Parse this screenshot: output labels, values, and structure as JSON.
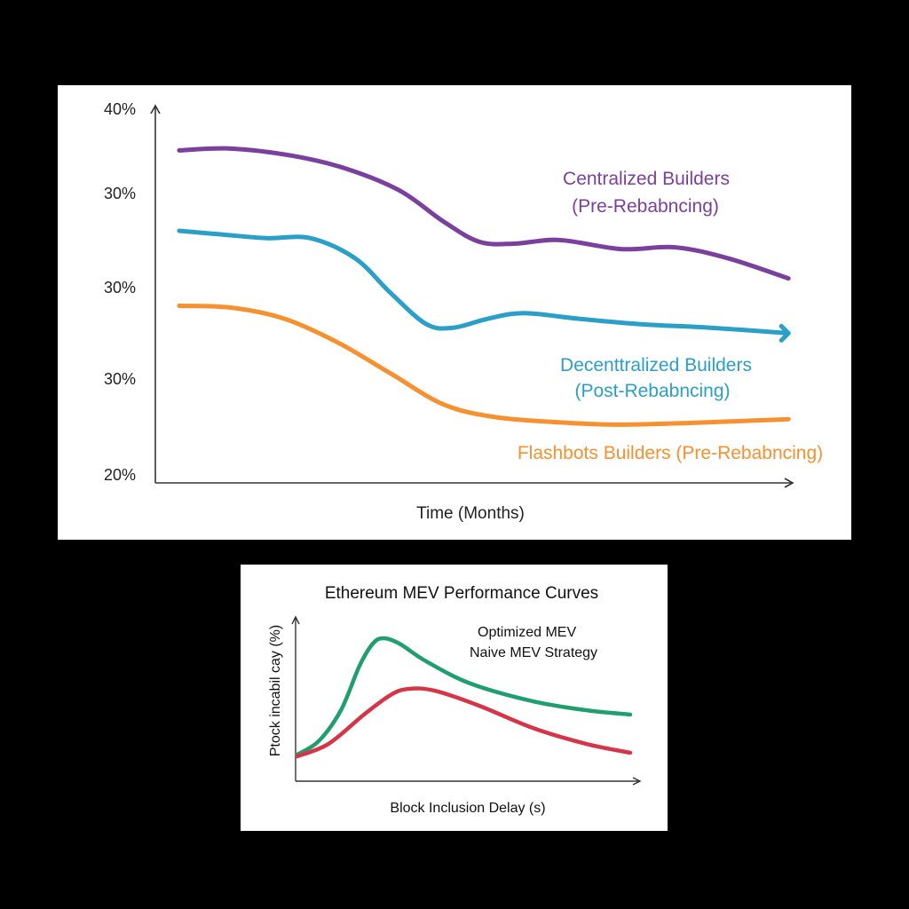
{
  "chart_data": [
    {
      "type": "line",
      "title": "",
      "xlabel": "Time (Months)",
      "ylabel": "",
      "y_tick_labels": [
        "40%",
        "30%",
        "30%",
        "30%",
        "20%"
      ],
      "ylim": [
        20,
        40
      ],
      "xlim": [
        0,
        12
      ],
      "grid": false,
      "legend": "inline labels at right",
      "series": [
        {
          "name": "Centralized Builders",
          "name_line2": "(Pre-Rebabncing)",
          "color": "#7b3f9e",
          "x": [
            0.45,
            1.42,
            2.59,
            3.59,
            4.6,
            5.43,
            6.1,
            6.77,
            7.6,
            8.77,
            9.78,
            10.78,
            11.92
          ],
          "y": [
            37.7,
            37.8,
            37.4,
            36.7,
            35.5,
            33.8,
            32.7,
            32.6,
            32.8,
            32.3,
            32.4,
            31.8,
            30.7
          ]
        },
        {
          "name": "Decenttralized Builders",
          "name_line2": "(Post-Rebabncing)",
          "color": "#2aa0c8",
          "end_arrow": true,
          "x": [
            0.45,
            1.25,
            2.09,
            2.92,
            3.76,
            4.43,
            5.1,
            5.6,
            6.27,
            6.94,
            7.94,
            9.11,
            10.45,
            11.92
          ],
          "y": [
            33.3,
            33.1,
            32.9,
            32.9,
            31.8,
            29.9,
            28.2,
            28.0,
            28.5,
            28.8,
            28.5,
            28.2,
            28.0,
            27.7
          ]
        },
        {
          "name": "Flashbots Builders (Pre-Rebabncing)",
          "color": "#f7902f",
          "x": [
            0.45,
            1.42,
            2.42,
            3.43,
            4.43,
            5.43,
            6.43,
            7.77,
            8.77,
            10.11,
            11.92
          ],
          "y": [
            29.2,
            29.1,
            28.5,
            27.2,
            25.5,
            23.8,
            23.1,
            22.8,
            22.7,
            22.8,
            23.0
          ]
        }
      ]
    },
    {
      "type": "line",
      "title": "Ethereum MEV Performance Curves",
      "xlabel": "Block Inclusion Delay (s)",
      "ylabel": "Ptock incabil cay (%)",
      "xlim": [
        0,
        10
      ],
      "ylim": [
        0,
        100
      ],
      "grid": false,
      "legend_text": [
        "Optimized MEV",
        "Naive MEV Strategy"
      ],
      "legend": "top-right",
      "series": [
        {
          "color": "#1f9e6e",
          "x": [
            0.05,
            0.67,
            1.32,
            1.86,
            2.25,
            2.56,
            3.02,
            3.8,
            5.09,
            6.9,
            8.45,
            9.74
          ],
          "y": [
            16.4,
            24.6,
            43.7,
            71,
            84.7,
            88,
            84.7,
            73.8,
            60.1,
            49.2,
            43.7,
            41
          ]
        },
        {
          "color": "#d63447",
          "x": [
            0.05,
            0.96,
            1.99,
            2.76,
            3.28,
            4.05,
            5.35,
            6.9,
            8.45,
            9.74
          ],
          "y": [
            15.3,
            23,
            41,
            53,
            56.8,
            55.7,
            46.4,
            32.8,
            23,
            17.5
          ]
        }
      ]
    }
  ]
}
